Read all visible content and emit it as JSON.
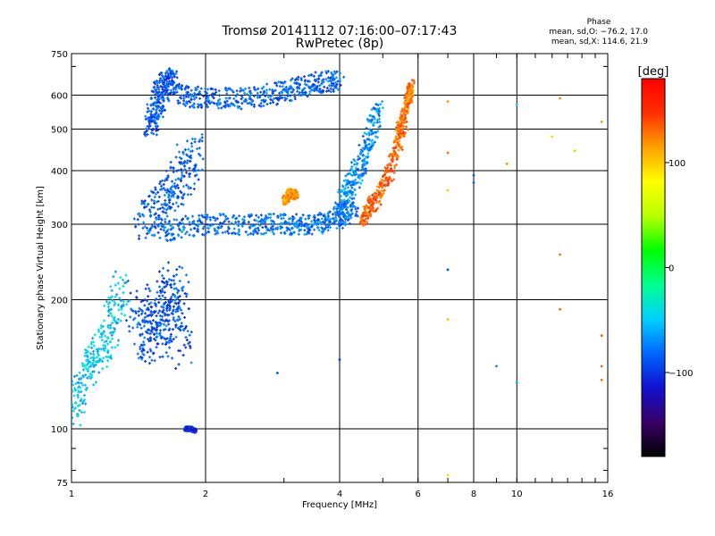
{
  "header": {
    "title": "Tromsø 20141112 07:16:00–07:17:43",
    "subtitle": "RwPretec (8p)"
  },
  "phase_box": {
    "title": "Phase",
    "line_o": "mean, sd,O: −76.2, 17.0",
    "line_x": "mean, sd,X: 114.6, 21.9"
  },
  "chart_data": {
    "type": "scatter",
    "title": "Tromsø 20141112 07:16:00–07:17:43",
    "subtitle": "RwPretec (8p)",
    "xlabel": "Frequency [MHz]",
    "ylabel": "Stationary phase Virtual Height [km]",
    "x_scale": "log",
    "y_scale": "log",
    "xlim": [
      1,
      16
    ],
    "ylim": [
      75,
      750
    ],
    "x_ticks": [
      1,
      2,
      4,
      6,
      8,
      10,
      16
    ],
    "x_tick_labels": [
      "1",
      "2",
      "4",
      "6",
      "8",
      "10",
      "16"
    ],
    "y_ticks": [
      75,
      100,
      200,
      300,
      400,
      500,
      600,
      750
    ],
    "y_tick_labels": [
      "75",
      "100",
      "200",
      "300",
      "400",
      "500",
      "600",
      "750"
    ],
    "grid": true,
    "colorbar": {
      "label": "[deg]",
      "range": [
        -180,
        180
      ],
      "ticks": [
        100,
        0,
        -100
      ],
      "tick_labels": [
        "100",
        "0",
        "−100"
      ],
      "colors": [
        "#000000",
        "#3a0068",
        "#1010d0",
        "#0066ff",
        "#00d0ff",
        "#00ff90",
        "#00ff00",
        "#b8ff00",
        "#ffff00",
        "#ffa000",
        "#ff3000",
        "#ff0000"
      ]
    },
    "series": [
      {
        "name": "O-mode",
        "mean_phase": -76.2,
        "sd_phase": 17.0
      },
      {
        "name": "X-mode",
        "mean_phase": 114.6,
        "sd_phase": 21.9
      }
    ],
    "traces": [
      {
        "x": [
          1.4,
          1.5,
          1.6,
          1.7,
          1.75
        ],
        "y": [
          200,
          160,
          180,
          220,
          150
        ],
        "phase": -90,
        "spread": 0.12
      },
      {
        "x": [
          1.45,
          1.6,
          1.75,
          1.9
        ],
        "y": [
          300,
          330,
          380,
          450
        ],
        "phase": -85,
        "spread": 0.1
      },
      {
        "x": [
          1.5,
          1.55,
          1.6,
          1.7
        ],
        "y": [
          500,
          560,
          630,
          650
        ],
        "phase": -90,
        "spread": 0.06
      },
      {
        "x": [
          1.7,
          2.0,
          2.5,
          3.0,
          3.5,
          4.0
        ],
        "y": [
          600,
          590,
          590,
          610,
          640,
          650
        ],
        "phase": -85,
        "spread": 0.05
      },
      {
        "x": [
          1.6,
          2.0,
          2.5,
          3.0,
          3.5,
          4.0,
          4.3
        ],
        "y": [
          290,
          300,
          300,
          300,
          300,
          310,
          330
        ],
        "phase": -80,
        "spread": 0.05
      },
      {
        "x": [
          4.0,
          4.3,
          4.6,
          4.9
        ],
        "y": [
          330,
          380,
          450,
          560
        ],
        "phase": -70,
        "spread": 0.05
      },
      {
        "x": [
          4.5,
          4.8,
          5.2,
          5.6
        ],
        "y": [
          310,
          340,
          400,
          520
        ],
        "phase": 135,
        "spread": 0.04
      },
      {
        "x": [
          5.4,
          5.7,
          5.8
        ],
        "y": [
          480,
          580,
          640
        ],
        "phase": 125,
        "spread": 0.03
      },
      {
        "x": [
          3.0,
          3.1,
          3.2
        ],
        "y": [
          340,
          355,
          350
        ],
        "phase": 115,
        "spread": 0.02
      },
      {
        "x": [
          1.0,
          1.1,
          1.2,
          1.3
        ],
        "y": [
          110,
          140,
          160,
          220
        ],
        "phase": -50,
        "spread": 0.08
      },
      {
        "x": [
          1.8,
          1.85,
          1.9
        ],
        "y": [
          100,
          100,
          99
        ],
        "phase": -110,
        "spread": 0.01
      }
    ],
    "scattered_points": [
      {
        "x": 7.0,
        "y": 580,
        "phase": 115
      },
      {
        "x": 7.0,
        "y": 440,
        "phase": 130
      },
      {
        "x": 7.0,
        "y": 360,
        "phase": 100
      },
      {
        "x": 7.0,
        "y": 235,
        "phase": -95
      },
      {
        "x": 7.0,
        "y": 180,
        "phase": 105
      },
      {
        "x": 7.0,
        "y": 78,
        "phase": 95
      },
      {
        "x": 8.0,
        "y": 375,
        "phase": -85
      },
      {
        "x": 8.0,
        "y": 390,
        "phase": -90
      },
      {
        "x": 9.5,
        "y": 415,
        "phase": 120
      },
      {
        "x": 10.0,
        "y": 570,
        "phase": -40
      },
      {
        "x": 12.0,
        "y": 480,
        "phase": 95
      },
      {
        "x": 12.5,
        "y": 590,
        "phase": 120
      },
      {
        "x": 12.5,
        "y": 255,
        "phase": 125
      },
      {
        "x": 12.5,
        "y": 190,
        "phase": 130
      },
      {
        "x": 13.5,
        "y": 445,
        "phase": 100
      },
      {
        "x": 15.5,
        "y": 520,
        "phase": 120
      },
      {
        "x": 15.5,
        "y": 165,
        "phase": 135
      },
      {
        "x": 15.5,
        "y": 140,
        "phase": 130
      },
      {
        "x": 15.5,
        "y": 130,
        "phase": 125
      },
      {
        "x": 9.0,
        "y": 140,
        "phase": -70
      },
      {
        "x": 10.0,
        "y": 128,
        "phase": -60
      },
      {
        "x": 4.0,
        "y": 145,
        "phase": -95
      },
      {
        "x": 2.9,
        "y": 135,
        "phase": -90
      }
    ]
  }
}
